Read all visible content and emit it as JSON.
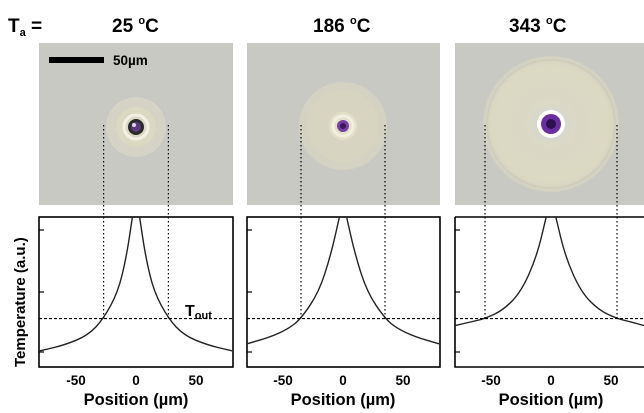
{
  "header": {
    "ta_prefix": "T",
    "ta_sub": "a",
    "ta_eq": " =",
    "temps": [
      {
        "num": "25",
        "deg": "o",
        "unit": "C"
      },
      {
        "num": "186",
        "deg": "o",
        "unit": "C"
      },
      {
        "num": "343",
        "deg": "o",
        "unit": "C"
      }
    ]
  },
  "scale_bar": {
    "label": "50µm"
  },
  "y_axis": {
    "label": "Temperature (a.u.)"
  },
  "x_axis": {
    "label": "Position (µm)",
    "ticks": [
      "-50",
      "0",
      "50"
    ]
  },
  "tout": {
    "main": "T",
    "sub": "out"
  },
  "colors": {
    "photo_bg": "#c9c9c4",
    "halo": "#dedbc4",
    "ring": "#e8e4cf",
    "particle": "#7a3fa3",
    "particle_core": "#3b1a5c"
  },
  "chart_data": {
    "type": "line",
    "xlabel": "Position (µm)",
    "ylabel": "Temperature (a.u.)",
    "xlim": [
      -80,
      80
    ],
    "x_ticks": [
      -50,
      0,
      50
    ],
    "panels": [
      {
        "ambient": "25 oC",
        "halo_radius_um": 27,
        "tout_level": 0.26,
        "curve": [
          [
            -80,
            0.03
          ],
          [
            -60,
            0.07
          ],
          [
            -40,
            0.14
          ],
          [
            -27,
            0.26
          ],
          [
            -15,
            0.45
          ],
          [
            -8,
            0.7
          ],
          [
            -3,
            1.0
          ],
          [
            3,
            1.0
          ],
          [
            8,
            0.7
          ],
          [
            15,
            0.45
          ],
          [
            27,
            0.26
          ],
          [
            40,
            0.14
          ],
          [
            60,
            0.07
          ],
          [
            80,
            0.03
          ]
        ]
      },
      {
        "ambient": "186 oC",
        "halo_radius_um": 35,
        "tout_level": 0.26,
        "curve": [
          [
            -80,
            0.08
          ],
          [
            -60,
            0.13
          ],
          [
            -45,
            0.19
          ],
          [
            -35,
            0.26
          ],
          [
            -20,
            0.45
          ],
          [
            -10,
            0.72
          ],
          [
            -3,
            1.0
          ],
          [
            3,
            1.0
          ],
          [
            10,
            0.72
          ],
          [
            20,
            0.45
          ],
          [
            35,
            0.26
          ],
          [
            45,
            0.19
          ],
          [
            60,
            0.13
          ],
          [
            80,
            0.08
          ]
        ]
      },
      {
        "ambient": "343 oC",
        "halo_radius_um": 55,
        "tout_level": 0.26,
        "curve": [
          [
            -80,
            0.21
          ],
          [
            -65,
            0.24
          ],
          [
            -55,
            0.26
          ],
          [
            -40,
            0.32
          ],
          [
            -25,
            0.45
          ],
          [
            -12,
            0.7
          ],
          [
            -4,
            1.0
          ],
          [
            4,
            1.0
          ],
          [
            12,
            0.7
          ],
          [
            25,
            0.45
          ],
          [
            40,
            0.32
          ],
          [
            55,
            0.26
          ],
          [
            65,
            0.24
          ],
          [
            80,
            0.21
          ]
        ]
      }
    ]
  }
}
